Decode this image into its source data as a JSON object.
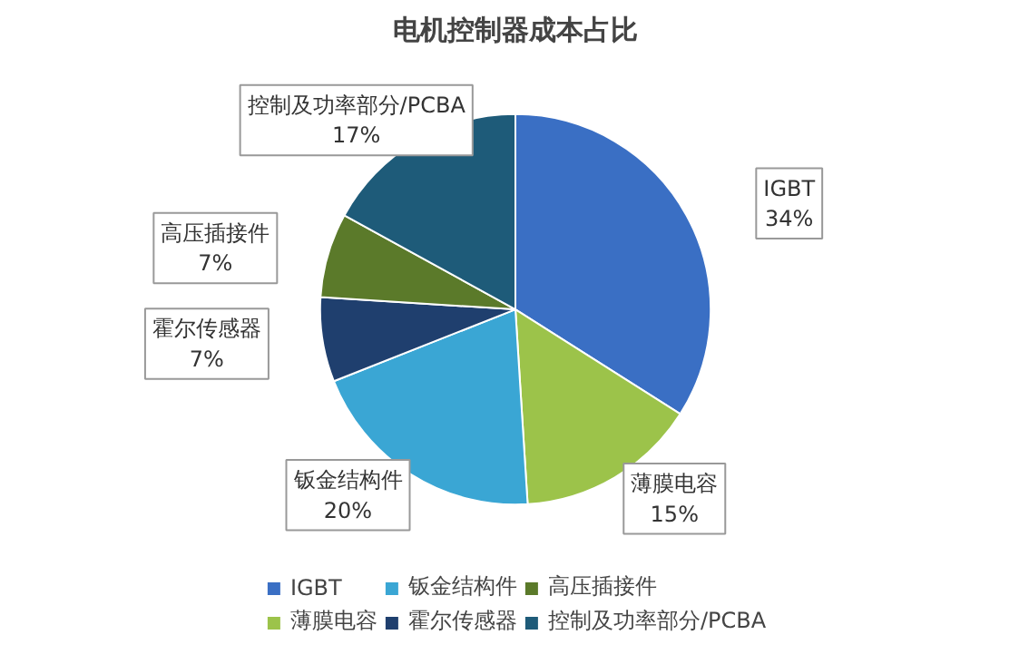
{
  "chart_data": {
    "type": "pie",
    "title": "电机控制器成本占比",
    "categories": [
      "IGBT",
      "薄膜电容",
      "钣金结构件",
      "霍尔传感器",
      "高压插接件",
      "控制及功率部分/PCBA"
    ],
    "values": [
      34,
      15,
      20,
      7,
      7,
      17
    ],
    "colors": [
      "#3a6fc4",
      "#9cc34a",
      "#3aa6d4",
      "#1f3f6e",
      "#5b7a2a",
      "#1e5b79"
    ],
    "value_labels": [
      "34%",
      "15%",
      "20%",
      "7%",
      "7%",
      "17%"
    ],
    "legend": "bottom"
  }
}
